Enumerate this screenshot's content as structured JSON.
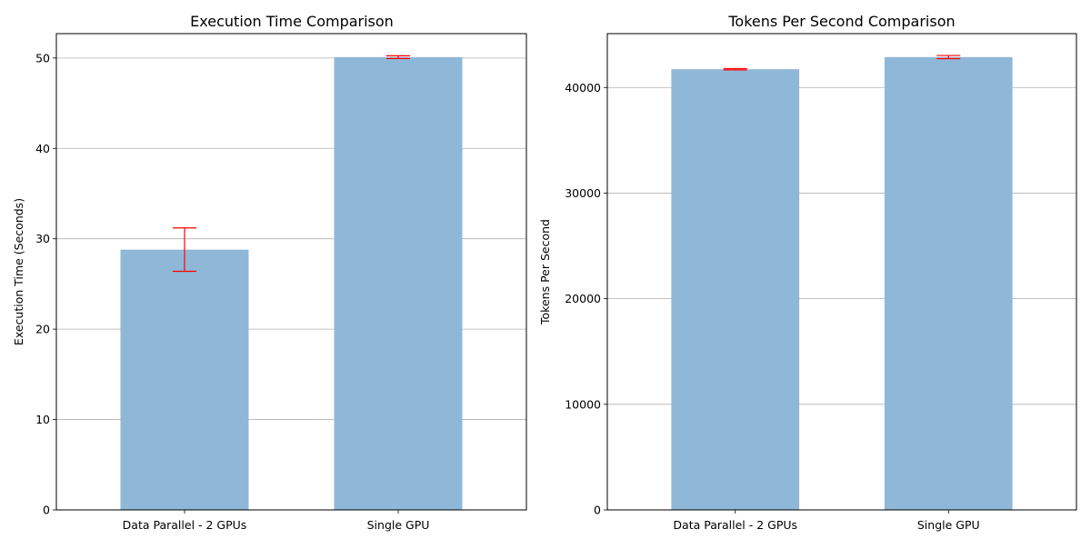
{
  "chart_data": [
    {
      "type": "bar",
      "title": "Execution Time Comparison",
      "xlabel": "",
      "ylabel": "Execution Time (Seconds)",
      "categories": [
        "Data Parallel - 2 GPUs",
        "Single GPU"
      ],
      "values": [
        28.8,
        50.1
      ],
      "error": [
        2.4,
        0.15
      ],
      "ylim": [
        0,
        52.7
      ],
      "yticks": [
        0,
        10,
        20,
        30,
        40,
        50
      ],
      "ytick_labels": [
        "0",
        "10",
        "20",
        "30",
        "40",
        "50"
      ],
      "grid": "y",
      "bar_color": "#8fb8d8",
      "error_color": "#ff0000"
    },
    {
      "type": "bar",
      "title": "Tokens Per Second Comparison",
      "xlabel": "",
      "ylabel": "Tokens Per Second",
      "categories": [
        "Data Parallel - 2 GPUs",
        "Single GPU"
      ],
      "values": [
        41730,
        42880
      ],
      "error": [
        60,
        150
      ],
      "ylim": [
        0,
        45100
      ],
      "yticks": [
        0,
        10000,
        20000,
        30000,
        40000
      ],
      "ytick_labels": [
        "0",
        "10000",
        "20000",
        "30000",
        "40000"
      ],
      "grid": "y",
      "bar_color": "#8fb8d8",
      "error_color": "#ff0000"
    }
  ]
}
